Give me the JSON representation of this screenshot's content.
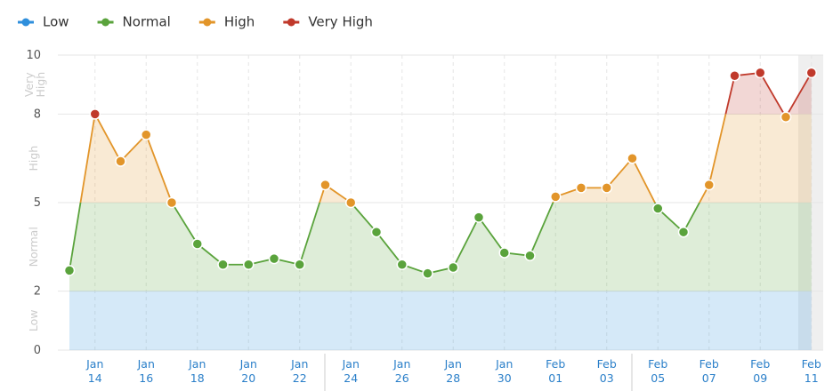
{
  "chart_data": {
    "type": "line",
    "bands": [
      {
        "name": "Low",
        "color": "#2f8fdc"
      },
      {
        "name": "Normal",
        "color": "#5aa33c"
      },
      {
        "name": "High",
        "color": "#e2952a"
      },
      {
        "name": "Very High",
        "color": "#c0392b"
      }
    ],
    "categories": [
      null,
      "Jan 14",
      null,
      "Jan 16",
      null,
      "Jan 18",
      null,
      "Jan 20",
      null,
      "Jan 22",
      null,
      "Jan 24",
      null,
      "Jan 26",
      null,
      "Jan 28",
      null,
      "Jan 30",
      null,
      "Feb 01",
      null,
      "Feb 03",
      null,
      "Feb 05",
      null,
      "Feb 07",
      null,
      "Feb 09",
      null,
      "Feb 11"
    ],
    "values": [
      2.7,
      8.0,
      6.4,
      7.3,
      5.0,
      3.6,
      2.9,
      2.9,
      3.1,
      2.9,
      5.6,
      5.0,
      4.0,
      2.9,
      2.6,
      2.8,
      4.5,
      3.3,
      3.2,
      5.2,
      5.5,
      5.5,
      6.5,
      4.8,
      4.0,
      5.6,
      9.3,
      9.4,
      7.9,
      9.4
    ],
    "ylim": [
      0,
      10
    ],
    "yticks": [
      0,
      2,
      5,
      8,
      10
    ],
    "grid": true
  }
}
